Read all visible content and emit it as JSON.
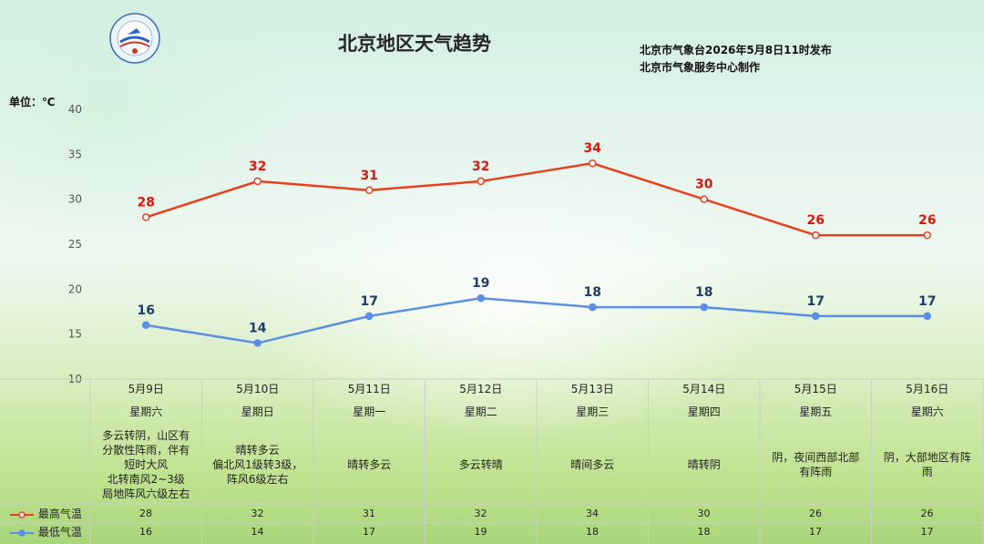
{
  "header": {
    "title": "北京地区天气趋势",
    "issuer_line1": "北京市气象台2026年5月8日11时发布",
    "issuer_line2": "北京市气象服务中心制作",
    "unit": "单位：℃",
    "logo": "beijing-meteorological-service-logo"
  },
  "columns": [
    {
      "date": "5月9日",
      "weekday": "星期六",
      "weather": [
        "多云转阴，山区有",
        "分散性阵雨，伴有",
        "短时大风",
        "北转南风2~3级",
        "局地阵风六级左右"
      ]
    },
    {
      "date": "5月10日",
      "weekday": "星期日",
      "weather": [
        "晴转多云",
        "偏北风1级转3级，",
        "阵风6级左右"
      ]
    },
    {
      "date": "5月11日",
      "weekday": "星期一",
      "weather": [
        "晴转多云"
      ]
    },
    {
      "date": "5月12日",
      "weekday": "星期二",
      "weather": [
        "多云转晴"
      ]
    },
    {
      "date": "5月13日",
      "weekday": "星期三",
      "weather": [
        "晴间多云"
      ]
    },
    {
      "date": "5月14日",
      "weekday": "星期四",
      "weather": [
        "晴转阴"
      ]
    },
    {
      "date": "5月15日",
      "weekday": "星期五",
      "weather": [
        "阴，夜间西部北部",
        "有阵雨"
      ]
    },
    {
      "date": "5月16日",
      "weekday": "星期六",
      "weather": [
        "阴，大部地区有阵",
        "雨"
      ]
    }
  ],
  "chart_data": {
    "type": "line",
    "categories": [
      "5月9日",
      "5月10日",
      "5月11日",
      "5月12日",
      "5月13日",
      "5月14日",
      "5月15日",
      "5月16日"
    ],
    "ylim": [
      10,
      40
    ],
    "yticks": [
      10,
      15,
      20,
      25,
      30,
      35,
      40
    ],
    "ylabel": "单位：℃",
    "grid": false,
    "series": [
      {
        "name": "最高气温",
        "color": "#e8401e",
        "label_color": "#e0150b",
        "values": [
          28,
          32,
          31,
          32,
          34,
          30,
          26,
          26
        ]
      },
      {
        "name": "最低气温",
        "color": "#5b8ee6",
        "label_color": "#1f3d6b",
        "values": [
          16,
          14,
          17,
          19,
          18,
          18,
          17,
          17
        ]
      }
    ]
  }
}
